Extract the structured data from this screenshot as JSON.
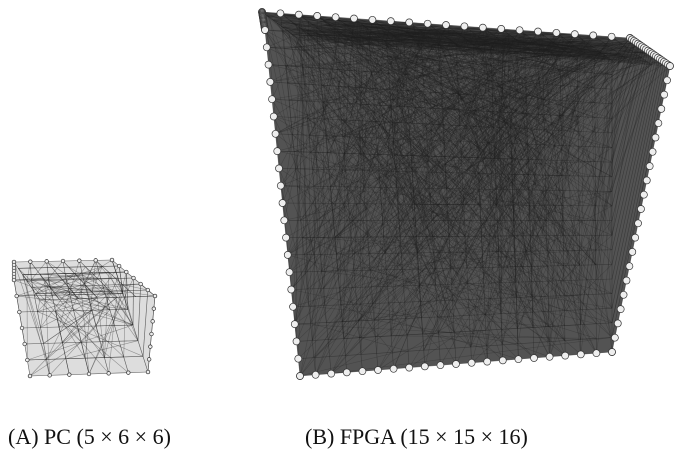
{
  "panels": [
    {
      "caption": "(A) PC (5 × 6 × 6)"
    },
    {
      "caption": "(B) FPGA (15 × 15 × 16)"
    }
  ]
}
